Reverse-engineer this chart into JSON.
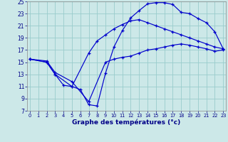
{
  "title": "Graphe des températures (°c)",
  "background_color": "#cce8e8",
  "grid_color": "#99cccc",
  "line_color": "#0000cc",
  "xlim": [
    0,
    23
  ],
  "ylim": [
    7,
    25
  ],
  "yticks": [
    7,
    9,
    11,
    13,
    15,
    17,
    19,
    21,
    23,
    25
  ],
  "xticks": [
    0,
    1,
    2,
    3,
    4,
    5,
    6,
    7,
    8,
    9,
    10,
    11,
    12,
    13,
    14,
    15,
    16,
    17,
    18,
    19,
    20,
    21,
    22,
    23
  ],
  "curve_top": {
    "x": [
      0,
      2,
      3,
      4,
      5,
      6,
      7,
      8,
      9,
      10,
      11,
      12,
      13,
      14,
      15,
      16,
      17,
      18,
      19,
      20,
      21,
      22,
      23
    ],
    "y": [
      15.5,
      15.0,
      13.0,
      11.2,
      11.0,
      10.5,
      8.0,
      7.8,
      13.2,
      17.5,
      20.2,
      22.3,
      23.5,
      24.6,
      24.8,
      24.8,
      24.5,
      23.2,
      23.0,
      22.2,
      21.5,
      20.0,
      17.2
    ]
  },
  "curve_mid": {
    "x": [
      0,
      2,
      3,
      5,
      7,
      8,
      9,
      10,
      11,
      12,
      13,
      14,
      15,
      16,
      17,
      18,
      19,
      20,
      21,
      22,
      23
    ],
    "y": [
      15.5,
      15.0,
      13.0,
      11.0,
      16.5,
      18.5,
      19.5,
      20.5,
      21.2,
      21.8,
      22.0,
      21.5,
      21.0,
      20.5,
      20.0,
      19.5,
      19.0,
      18.5,
      18.0,
      17.5,
      17.2
    ]
  },
  "curve_bot": {
    "x": [
      0,
      2,
      3,
      5,
      7,
      9,
      10,
      11,
      12,
      13,
      14,
      15,
      16,
      17,
      18,
      19,
      20,
      21,
      22,
      23
    ],
    "y": [
      15.5,
      15.2,
      13.3,
      11.8,
      8.5,
      15.0,
      15.5,
      15.8,
      16.0,
      16.5,
      17.0,
      17.2,
      17.5,
      17.8,
      18.0,
      17.8,
      17.5,
      17.2,
      16.8,
      17.0
    ]
  }
}
